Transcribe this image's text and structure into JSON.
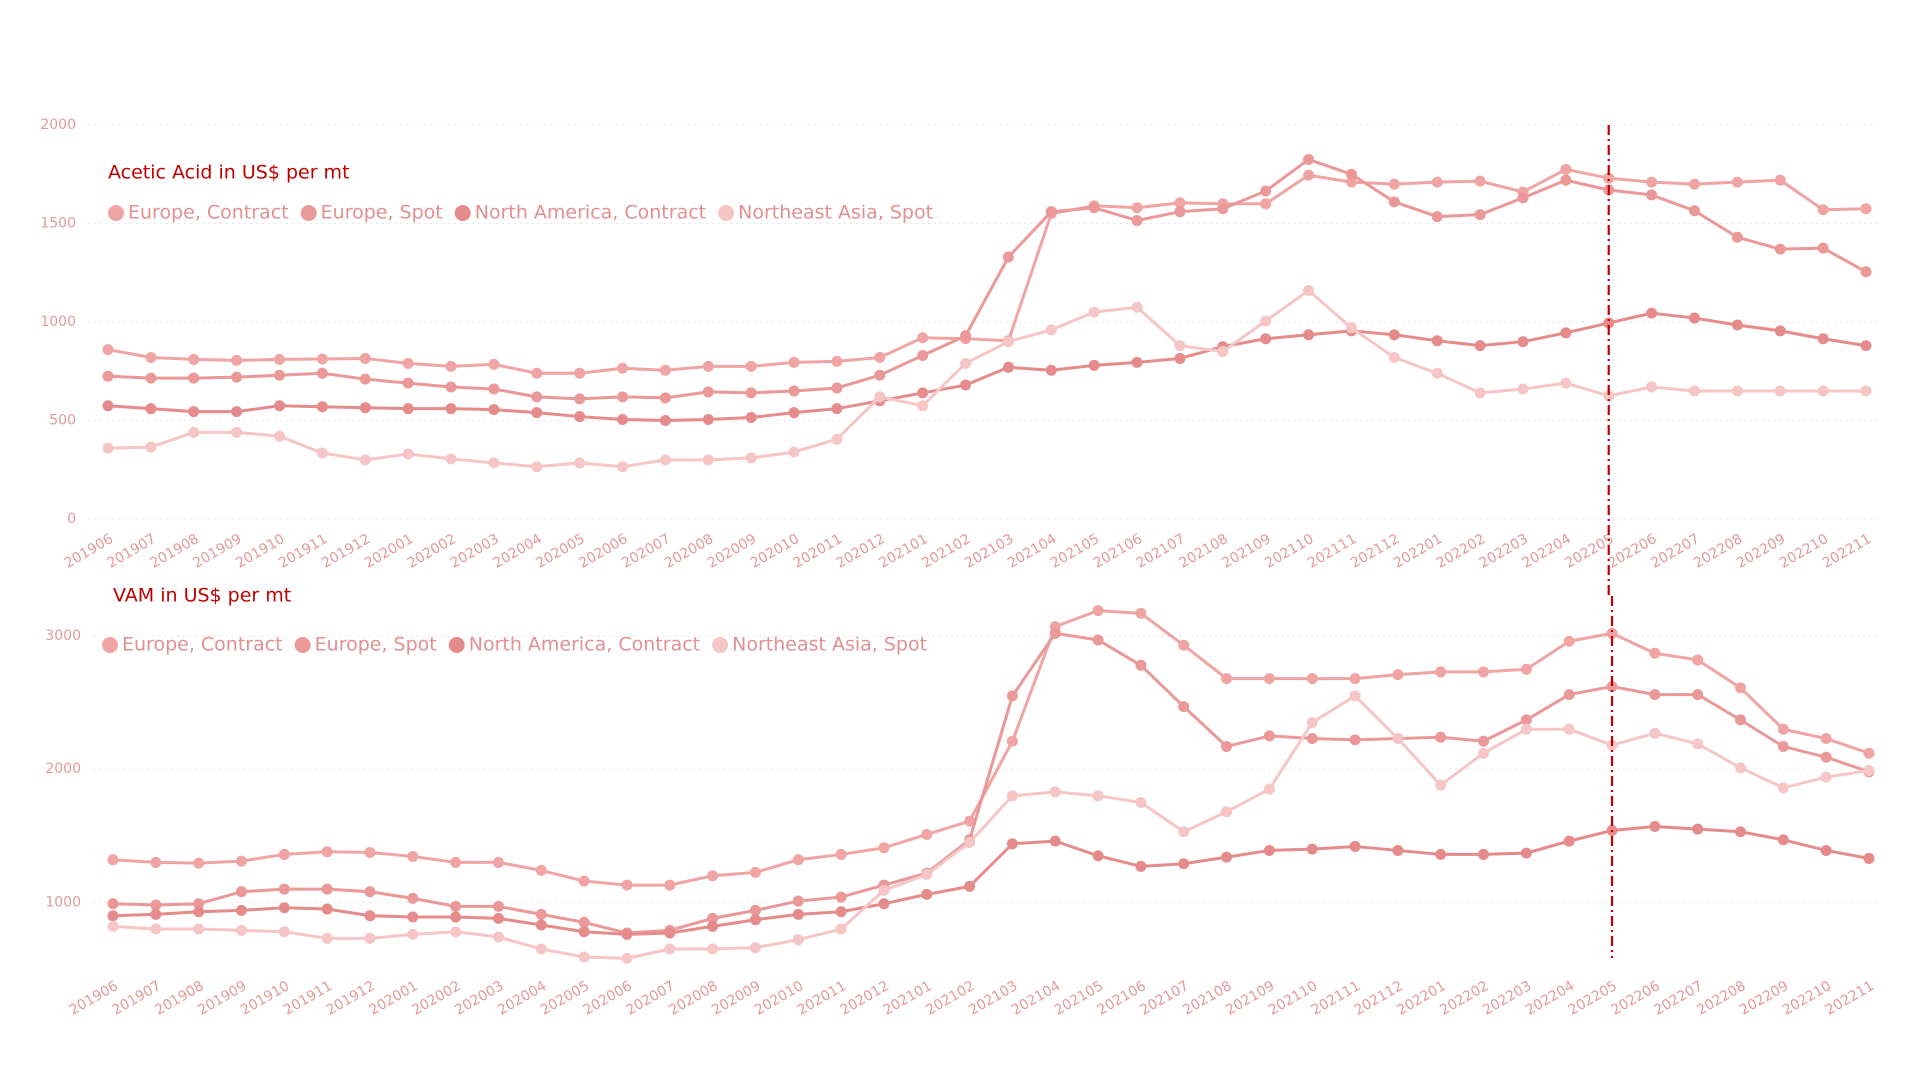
{
  "charts": [
    {
      "type": "line",
      "title": "Acetic Acid in US$ per mt",
      "categories": [
        "201906",
        "201907",
        "201908",
        "201909",
        "201910",
        "201911",
        "201912",
        "202001",
        "202002",
        "202003",
        "202004",
        "202005",
        "202006",
        "202007",
        "202008",
        "202009",
        "202010",
        "202011",
        "202012",
        "202101",
        "202102",
        "202103",
        "202104",
        "202105",
        "202106",
        "202107",
        "202108",
        "202109",
        "202110",
        "202111",
        "202112",
        "202201",
        "202202",
        "202203",
        "202204",
        "202205",
        "202206",
        "202207",
        "202208",
        "202209",
        "202210",
        "202211"
      ],
      "series": [
        {
          "name": "Europe, Contract",
          "color": "#f0a4a4",
          "values": [
            860,
            820,
            810,
            805,
            810,
            812,
            815,
            790,
            775,
            785,
            740,
            740,
            765,
            755,
            775,
            775,
            795,
            800,
            820,
            920,
            915,
            905,
            1550,
            1590,
            1580,
            1605,
            1600,
            1600,
            1745,
            1710,
            1700,
            1710,
            1715,
            1660,
            1775,
            1730,
            1710,
            1700,
            1710,
            1720,
            1570,
            1575
          ]
        },
        {
          "name": "Europe, Spot",
          "color": "#eb9898",
          "values": [
            725,
            715,
            715,
            720,
            730,
            740,
            710,
            690,
            670,
            660,
            620,
            610,
            620,
            615,
            645,
            640,
            650,
            665,
            730,
            830,
            930,
            1330,
            1560,
            1580,
            1515,
            1560,
            1575,
            1665,
            1825,
            1750,
            1610,
            1535,
            1545,
            1630,
            1720,
            1670,
            1645,
            1565,
            1430,
            1370,
            1375,
            1255
          ]
        },
        {
          "name": "North America, Contract",
          "color": "#e68b8b",
          "values": [
            575,
            560,
            545,
            545,
            575,
            570,
            565,
            560,
            560,
            555,
            540,
            520,
            505,
            500,
            505,
            515,
            540,
            560,
            600,
            640,
            680,
            770,
            755,
            780,
            795,
            815,
            875,
            915,
            935,
            955,
            935,
            905,
            880,
            900,
            945,
            995,
            1045,
            1020,
            985,
            955,
            915,
            880
          ]
        },
        {
          "name": "Northeast Asia, Spot",
          "color": "#f6c6c6",
          "values": [
            360,
            365,
            440,
            440,
            420,
            335,
            300,
            330,
            305,
            285,
            265,
            285,
            265,
            300,
            300,
            310,
            340,
            405,
            620,
            575,
            790,
            900,
            960,
            1050,
            1075,
            880,
            850,
            1005,
            1160,
            970,
            820,
            740,
            640,
            660,
            690,
            625,
            670,
            650,
            650,
            650,
            650,
            650
          ]
        }
      ],
      "ylim": [
        0,
        2000
      ],
      "yticks": [
        0,
        500,
        1000,
        1500,
        2000
      ],
      "grid": true,
      "marker_category": "202205",
      "marker_color": "#c00000"
    },
    {
      "type": "line",
      "title": "VAM in US$ per mt",
      "categories": [
        "201906",
        "201907",
        "201908",
        "201909",
        "201910",
        "201911",
        "201912",
        "202001",
        "202002",
        "202003",
        "202004",
        "202005",
        "202006",
        "202007",
        "202008",
        "202009",
        "202010",
        "202011",
        "202012",
        "202101",
        "202102",
        "202103",
        "202104",
        "202105",
        "202106",
        "202107",
        "202108",
        "202109",
        "202110",
        "202111",
        "202112",
        "202201",
        "202202",
        "202203",
        "202204",
        "202205",
        "202206",
        "202207",
        "202208",
        "202209",
        "202210",
        "202211"
      ],
      "series": [
        {
          "name": "Europe, Contract",
          "color": "#f0a4a4",
          "values": [
            1320,
            1300,
            1295,
            1310,
            1360,
            1380,
            1375,
            1345,
            1300,
            1300,
            1240,
            1160,
            1130,
            1130,
            1200,
            1225,
            1320,
            1360,
            1410,
            1510,
            1610,
            2210,
            3070,
            3190,
            3170,
            2930,
            2680,
            2680,
            2680,
            2680,
            2710,
            2730,
            2730,
            2750,
            2960,
            3020,
            2870,
            2820,
            2610,
            2300,
            2230,
            2120
          ]
        },
        {
          "name": "Europe, Spot",
          "color": "#eb9898",
          "values": [
            990,
            980,
            990,
            1080,
            1100,
            1100,
            1080,
            1030,
            970,
            970,
            910,
            850,
            770,
            790,
            880,
            940,
            1010,
            1040,
            1130,
            1220,
            1470,
            2550,
            3020,
            2970,
            2780,
            2470,
            2170,
            2250,
            2230,
            2220,
            2230,
            2240,
            2210,
            2370,
            2560,
            2620,
            2560,
            2560,
            2370,
            2170,
            2090,
            1980
          ]
        },
        {
          "name": "North America, Contract",
          "color": "#e68b8b",
          "values": [
            900,
            910,
            930,
            940,
            960,
            950,
            900,
            890,
            890,
            880,
            830,
            780,
            760,
            770,
            820,
            870,
            910,
            930,
            990,
            1060,
            1120,
            1440,
            1460,
            1350,
            1270,
            1290,
            1340,
            1390,
            1400,
            1420,
            1390,
            1360,
            1360,
            1370,
            1460,
            1540,
            1570,
            1550,
            1530,
            1470,
            1390,
            1330
          ]
        },
        {
          "name": "Northeast Asia, Spot",
          "color": "#f6c6c6",
          "values": [
            820,
            800,
            800,
            790,
            780,
            730,
            730,
            760,
            780,
            740,
            650,
            590,
            580,
            650,
            650,
            660,
            720,
            800,
            1090,
            1210,
            1450,
            1800,
            1830,
            1800,
            1750,
            1530,
            1680,
            1850,
            2350,
            2550,
            2230,
            1880,
            2120,
            2300,
            2300,
            2180,
            2270,
            2190,
            2010,
            1860,
            1940,
            1990
          ]
        }
      ],
      "ylim": [
        500,
        3300
      ],
      "yticks": [
        1000,
        2000,
        3000
      ],
      "grid": true,
      "marker_category": "202205",
      "marker_color": "#c00000"
    }
  ]
}
